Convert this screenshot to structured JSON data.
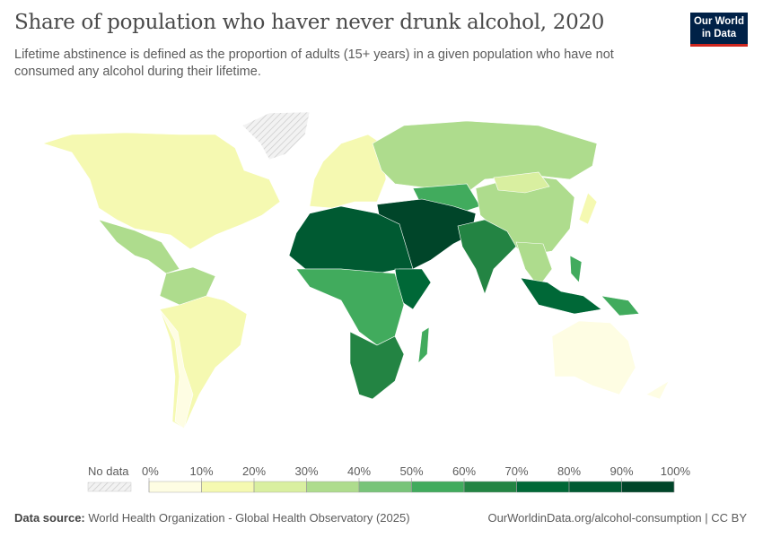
{
  "header": {
    "title": "Share of population who haver never drunk alcohol, 2020",
    "subtitle": "Lifetime abstinence is defined as the proportion of adults (15+ years) in a given population who have not consumed any alcohol during their lifetime.",
    "logo": "Our World in Data",
    "logo_line1": "Our World",
    "logo_line2": "in Data"
  },
  "legend": {
    "no_data_label": "No data",
    "ticks": [
      "0%",
      "10%",
      "20%",
      "30%",
      "40%",
      "50%",
      "60%",
      "70%",
      "80%",
      "90%",
      "100%"
    ],
    "colors": [
      "#fefde3",
      "#f5f9b1",
      "#d9efa0",
      "#aedc8d",
      "#78c479",
      "#41ab5d",
      "#238443",
      "#006837",
      "#005a32",
      "#004529"
    ],
    "no_data_color": "#e0e0e0"
  },
  "footer": {
    "source_label": "Data source:",
    "source": "World Health Organization - Global Health Observatory (2025)",
    "url": "OurWorldinData.org/alcohol-consumption | CC BY"
  }
}
